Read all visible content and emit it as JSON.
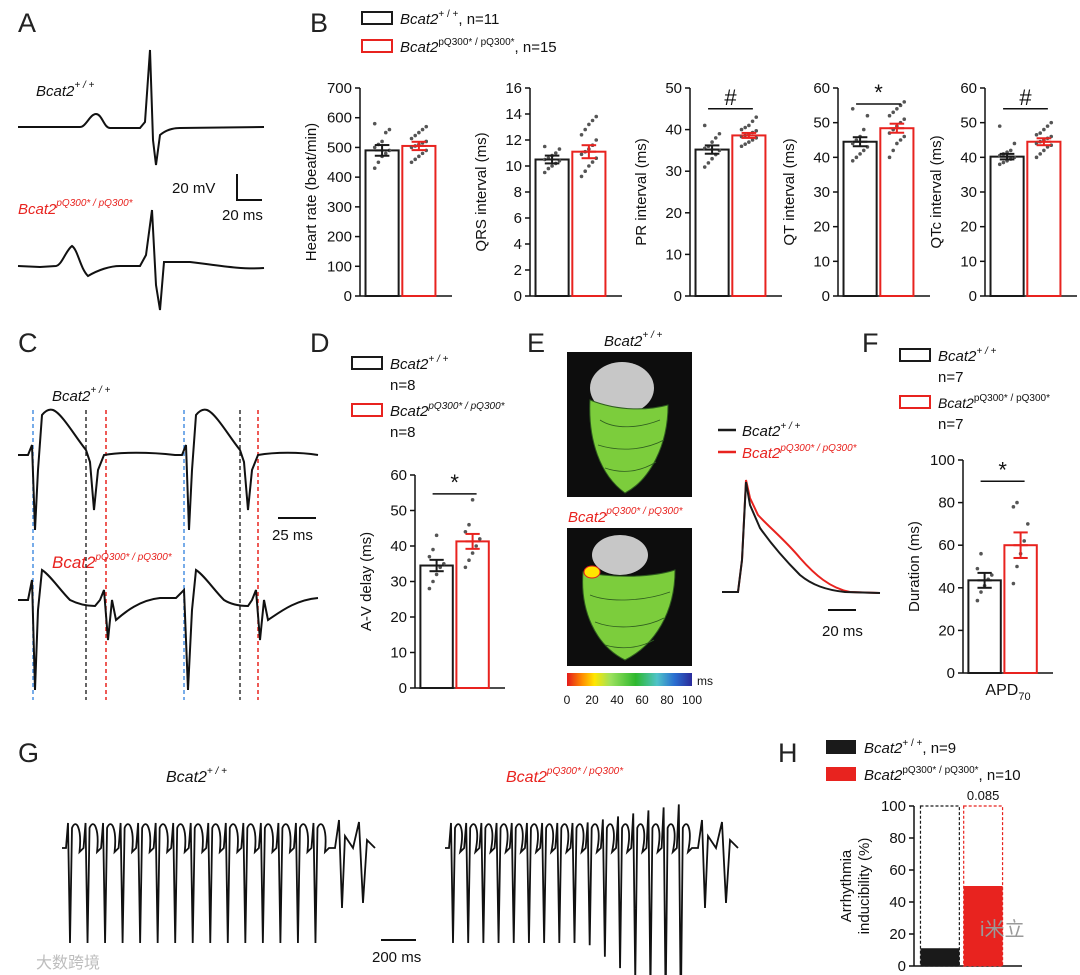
{
  "colors": {
    "wt": "#1a1a1a",
    "mut": "#e8231f",
    "mutfill": "#e8231f",
    "map_green": "#7ccd3c"
  },
  "panels": {
    "A": "A",
    "B": "B",
    "C": "C",
    "D": "D",
    "E": "E",
    "F": "F",
    "G": "G",
    "H": "H"
  },
  "genotypes": {
    "wt_name": "Bcat2",
    "wt_sup": "+ / +",
    "mut_name": "Bcat2",
    "mut_sup": "pQ300* / pQ300*"
  },
  "legend_B": {
    "wt_n": ", n=11",
    "mut_n": ", n=15"
  },
  "legend_D": {
    "wt_n": "n=8",
    "mut_n": "n=8"
  },
  "legend_F": {
    "wt_n": "n=7",
    "mut_n": "n=7"
  },
  "legend_H": {
    "wt_n": ", n=9",
    "mut_n": ", n=10"
  },
  "scalebars": {
    "A_v": "20 mV",
    "A_t": "20 ms",
    "C_t": "25 ms",
    "E_t": "20 ms",
    "G_t": "200 ms"
  },
  "colorbar": {
    "unit": "ms",
    "ticks": [
      "0",
      "20",
      "40",
      "60",
      "80",
      "100"
    ]
  },
  "watermark": {
    "left": "大数跨境",
    "right": "i米立"
  },
  "chart_data": [
    {
      "id": "B1",
      "type": "bar",
      "ylabel": "Heart rate (beat/min)",
      "ylim": [
        0,
        700
      ],
      "yticks": [
        0,
        100,
        200,
        300,
        400,
        500,
        600,
        700
      ],
      "categories": [
        "Bcat2 +/+",
        "Bcat2 pQ300*/pQ300*"
      ],
      "values": [
        490,
        505
      ],
      "sem": [
        18,
        14
      ],
      "sig": "",
      "points": [
        [
          430,
          450,
          470,
          480,
          490,
          500,
          510,
          520,
          550,
          560,
          580
        ],
        [
          450,
          460,
          470,
          480,
          490,
          500,
          505,
          510,
          515,
          520,
          530,
          540,
          550,
          560,
          570
        ]
      ]
    },
    {
      "id": "B2",
      "type": "bar",
      "ylabel": "QRS interval (ms)",
      "ylim": [
        0,
        16
      ],
      "yticks": [
        0,
        2,
        4,
        6,
        8,
        10,
        12,
        14,
        16
      ],
      "categories": [
        "Bcat2 +/+",
        "Bcat2 pQ300*/pQ300*"
      ],
      "values": [
        10.5,
        11.1
      ],
      "sem": [
        0.3,
        0.5
      ],
      "sig": "",
      "points": [
        [
          9.5,
          9.8,
          10.0,
          10.2,
          10.4,
          10.5,
          10.6,
          10.8,
          11.0,
          11.3,
          11.5
        ],
        [
          9.2,
          9.6,
          10.0,
          10.3,
          10.6,
          10.9,
          11.1,
          11.3,
          11.6,
          12.0,
          12.4,
          12.8,
          13.2,
          13.5,
          13.8
        ]
      ]
    },
    {
      "id": "B3",
      "type": "bar",
      "ylabel": "PR interval (ms)",
      "ylim": [
        0,
        50
      ],
      "yticks": [
        0,
        10,
        20,
        30,
        40,
        50
      ],
      "categories": [
        "Bcat2 +/+",
        "Bcat2 pQ300*/pQ300*"
      ],
      "values": [
        35.2,
        38.6
      ],
      "sem": [
        1.0,
        0.6
      ],
      "sig": "#",
      "points": [
        [
          31,
          32,
          33,
          34,
          35,
          35.5,
          36,
          37,
          38,
          39,
          41
        ],
        [
          36,
          36.5,
          37,
          37.5,
          38,
          38.3,
          38.6,
          39,
          39.3,
          39.7,
          40,
          40.5,
          41,
          42,
          43
        ]
      ]
    },
    {
      "id": "B4",
      "type": "bar",
      "ylabel": "QT interval (ms)",
      "ylim": [
        0,
        60
      ],
      "yticks": [
        0,
        10,
        20,
        30,
        40,
        50,
        60
      ],
      "categories": [
        "Bcat2 +/+",
        "Bcat2 pQ300*/pQ300*"
      ],
      "values": [
        44.5,
        48.4
      ],
      "sem": [
        1.3,
        1.3
      ],
      "sig": "*",
      "points": [
        [
          39,
          40,
          41,
          42,
          43,
          44,
          45,
          46,
          48,
          52,
          54
        ],
        [
          40,
          42,
          44,
          45,
          46,
          47,
          48,
          49,
          50,
          51,
          52,
          53,
          54,
          55,
          56
        ]
      ]
    },
    {
      "id": "B5",
      "type": "bar",
      "ylabel": "QTc interval (ms)",
      "ylim": [
        0,
        60
      ],
      "yticks": [
        0,
        10,
        20,
        30,
        40,
        50,
        60
      ],
      "categories": [
        "Bcat2 +/+",
        "Bcat2 pQ300*/pQ300*"
      ],
      "values": [
        40.2,
        44.5
      ],
      "sem": [
        0.8,
        1.0
      ],
      "sig": "#",
      "points": [
        [
          38,
          38.5,
          39,
          39.5,
          40,
          40.5,
          41,
          41.5,
          42,
          44,
          49
        ],
        [
          40,
          41,
          42,
          43,
          43.5,
          44,
          44.5,
          45,
          45.5,
          46,
          46.5,
          47,
          48,
          49,
          50
        ]
      ]
    },
    {
      "id": "D",
      "type": "bar",
      "ylabel": "A-V delay (ms)",
      "ylim": [
        0,
        60
      ],
      "yticks": [
        0,
        10,
        20,
        30,
        40,
        50,
        60
      ],
      "categories": [
        "Bcat2 +/+",
        "Bcat2 pQ300*/pQ300*"
      ],
      "values": [
        34.5,
        41.3
      ],
      "sem": [
        1.6,
        2.1
      ],
      "sig": "*",
      "points": [
        [
          28,
          30,
          32,
          34,
          35,
          37,
          39,
          43
        ],
        [
          34,
          36,
          38,
          40,
          42,
          44,
          46,
          53
        ]
      ]
    },
    {
      "id": "F",
      "type": "bar",
      "ylabel": "Duration (ms)",
      "xlabel": "APD",
      "xlabel_sub": "70",
      "ylim": [
        0,
        100
      ],
      "yticks": [
        0,
        20,
        40,
        60,
        80,
        100
      ],
      "categories": [
        "Bcat2 +/+",
        "Bcat2 pQ300*/pQ300*"
      ],
      "values": [
        43.5,
        60.0
      ],
      "sem": [
        3.5,
        6.0
      ],
      "sig": "*",
      "points": [
        [
          34,
          38,
          41,
          44,
          46,
          49,
          56
        ],
        [
          42,
          50,
          56,
          62,
          70,
          78,
          80
        ]
      ]
    },
    {
      "id": "H",
      "type": "bar",
      "stacked": true,
      "ylabel": "Arrhythmia inducibility (%)",
      "ylim": [
        0,
        100
      ],
      "yticks": [
        0,
        20,
        40,
        60,
        80,
        100
      ],
      "categories": [
        "Bcat2 +/+",
        "Bcat2 pQ300*/pQ300*"
      ],
      "values": [
        11.1,
        50.0
      ],
      "p_value": "0.085"
    }
  ]
}
